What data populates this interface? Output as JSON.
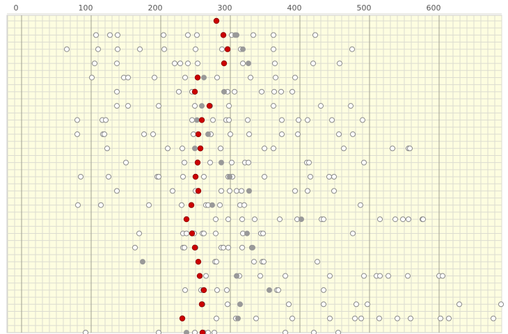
{
  "chart_data": {
    "type": "dot_strip",
    "xlim": [
      -21,
      690
    ],
    "xticks": [
      0,
      100,
      200,
      300,
      400,
      500,
      600
    ],
    "minor_grid_step": 10,
    "grid": true,
    "background": "#fdfde0",
    "highlight_color": "#cc0000",
    "filled_color": "#999999",
    "open_color": "#888888",
    "rows": [
      {
        "highlight": 280,
        "filled": [],
        "open": []
      },
      {
        "highlight": 290,
        "filled": [
          307,
          309
        ],
        "open": [
          107,
          127,
          138,
          204,
          239,
          252,
          302,
          333,
          362,
          422
        ]
      },
      {
        "highlight": 296,
        "filled": [
          318
        ],
        "open": [
          65,
          110,
          138,
          170,
          205,
          250,
          288,
          315,
          362,
          475
        ]
      },
      {
        "highlight": 291,
        "filled": [
          326
        ],
        "open": [
          105,
          137,
          220,
          228,
          239,
          253,
          318,
          364,
          419,
          457
        ]
      },
      {
        "highlight": 253,
        "filled": [
          262
        ],
        "open": [
          101,
          147,
          153,
          191,
          235,
          281,
          329,
          365,
          393
        ]
      },
      {
        "highlight": 249,
        "filled": [
          291
        ],
        "open": [
          137,
          226,
          245,
          296,
          306,
          345,
          363,
          373,
          389
        ]
      },
      {
        "highlight": 270,
        "filled": [
          259
        ],
        "open": [
          137,
          153,
          197,
          249,
          271,
          298,
          362,
          430,
          473
        ]
      },
      {
        "highlight": 259,
        "filled": [
          252
        ],
        "open": [
          80,
          116,
          121,
          245,
          275,
          294,
          298,
          325,
          374,
          398,
          411,
          446,
          490
        ]
      },
      {
        "highlight": 254,
        "filled": [
          268
        ],
        "open": [
          80,
          117,
          119,
          176,
          189,
          247,
          272,
          300,
          327,
          374,
          397,
          456,
          476
        ]
      },
      {
        "highlight": 257,
        "filled": [
          249
        ],
        "open": [
          123,
          210,
          231,
          286,
          349,
          362,
          463,
          533,
          556,
          558
        ]
      },
      {
        "highlight": 253,
        "filled": [
          287
        ],
        "open": [
          150,
          234,
          271,
          302,
          321,
          326,
          410,
          413,
          492
        ]
      },
      {
        "highlight": 250,
        "filled": [
          299
        ],
        "open": [
          85,
          125,
          195,
          197,
          232,
          262,
          297,
          300,
          303,
          349,
          415,
          442,
          449
        ]
      },
      {
        "highlight": 254,
        "filled": [
          327
        ],
        "open": [
          137,
          217,
          250,
          287,
          299,
          309,
          316,
          393,
          411,
          449
        ]
      },
      {
        "highlight": 244,
        "filled": [
          274
        ],
        "open": [
          81,
          114,
          183,
          230,
          265,
          268,
          285,
          314,
          320,
          487
        ]
      },
      {
        "highlight": 237,
        "filled": [
          402
        ],
        "open": [
          279,
          297,
          317,
          335,
          371,
          396,
          431,
          434,
          515,
          537,
          548,
          556,
          576,
          577
        ]
      },
      {
        "highlight": 245,
        "filled": [
          324
        ],
        "open": [
          169,
          232,
          237,
          248,
          260,
          262,
          279,
          318,
          344,
          347,
          476
        ]
      },
      {
        "highlight": 249,
        "filled": [
          332
        ],
        "open": [
          163,
          232,
          234,
          250,
          287,
          290,
          297,
          317,
          331
        ]
      },
      {
        "highlight": 254,
        "filled": [
          174
        ],
        "open": [
          278,
          280,
          334,
          346,
          348,
          425
        ]
      },
      {
        "highlight": 256,
        "filled": [
          309
        ],
        "open": [
          265,
          313,
          343,
          379,
          443,
          492,
          510,
          515,
          527,
          555,
          600,
          605
        ]
      },
      {
        "highlight": 262,
        "filled": [
          356
        ],
        "open": [
          235,
          258,
          261,
          281,
          295,
          367,
          369,
          434
        ]
      },
      {
        "highlight": 259,
        "filled": [
          314
        ],
        "open": [
          260,
          296,
          384,
          434,
          481,
          497,
          629,
          689
        ]
      },
      {
        "highlight": 231,
        "filled": [
          311
        ],
        "open": [
          280,
          308,
          337,
          389,
          443,
          479,
          488,
          514,
          540,
          559,
          602,
          614,
          678
        ]
      },
      {
        "highlight": 260,
        "filled": [
          237
        ],
        "open": [
          92,
          197,
          249,
          262,
          268,
          277,
          379,
          420,
          455
        ]
      }
    ]
  }
}
